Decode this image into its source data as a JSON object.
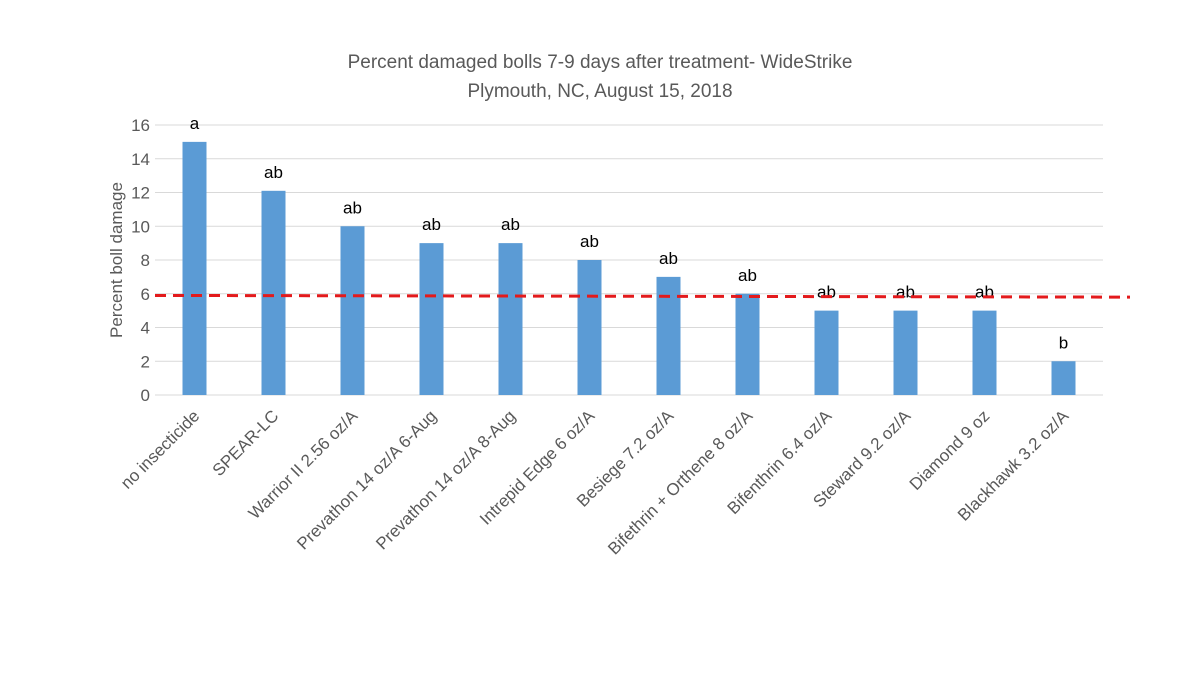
{
  "chart_data": {
    "type": "bar",
    "title": "Percent damaged bolls 7-9 days after treatment- WideStrike",
    "subtitle": "Plymouth, NC, August 15, 2018",
    "xlabel": "",
    "ylabel": "Percent boll damage",
    "ylim": [
      0,
      16
    ],
    "yticks": [
      0,
      2,
      4,
      6,
      8,
      10,
      12,
      14,
      16
    ],
    "grid": true,
    "categories": [
      "no insecticide",
      "SPEAR-LC",
      "Warrior II 2.56 oz/A",
      "Prevathon 14 oz/A 6-Aug",
      "Prevathon 14 oz/A 8-Aug",
      "Intrepid Edge 6 oz/A",
      "Besiege 7.2 oz/A",
      "Bifethrin + Orthene 8 oz/A",
      "Bifenthrin 6.4 oz/A",
      "Steward 9.2 oz/A",
      "Diamond 9 oz",
      "Blackhawk 3.2 oz/A"
    ],
    "values": [
      15,
      12.1,
      10,
      9,
      9,
      8,
      7,
      6,
      5,
      5,
      5,
      2
    ],
    "data_labels": [
      "a",
      "ab",
      "ab",
      "ab",
      "ab",
      "ab",
      "ab",
      "ab",
      "ab",
      "ab",
      "ab",
      "b"
    ],
    "reference_line": {
      "y_start": 5.9,
      "y_end": 5.8,
      "style": "dashed",
      "color": "#e31a1c"
    },
    "bar_color": "#5b9bd5",
    "grid_color": "#d9d9d9"
  }
}
